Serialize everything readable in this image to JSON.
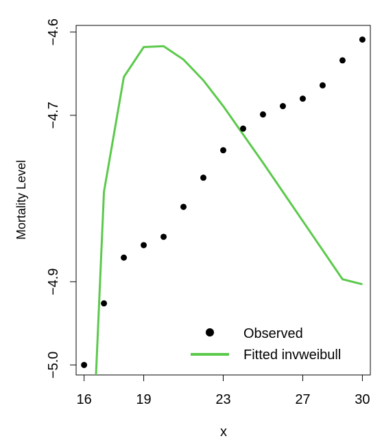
{
  "chart_data": {
    "type": "scatter+line",
    "xlabel": "x",
    "ylabel": "Mortality Level",
    "xlim": [
      15.6,
      30.4
    ],
    "ylim": [
      -5.012,
      -4.592
    ],
    "x_ticks": [
      16,
      19,
      23,
      27,
      30
    ],
    "y_ticks": [
      -5.0,
      -4.9,
      -4.7,
      -4.6
    ],
    "x_tick_labels": [
      "16",
      "19",
      "23",
      "27",
      "30"
    ],
    "y_tick_labels": [
      "−5.0",
      "−4.9",
      "−4.7",
      "−4.6"
    ],
    "grid": false,
    "legend_position": "bottom-right",
    "series": [
      {
        "name": "Observed",
        "kind": "points",
        "color": "#000000",
        "x": [
          16,
          17,
          18,
          19,
          20,
          21,
          22,
          23,
          24,
          25,
          26,
          27,
          28,
          29,
          30
        ],
        "y": [
          -5.0,
          -4.926,
          -4.871,
          -4.856,
          -4.846,
          -4.81,
          -4.775,
          -4.742,
          -4.716,
          -4.699,
          -4.689,
          -4.68,
          -4.664,
          -4.634,
          -4.609
        ]
      },
      {
        "name": "Fitted invweibull",
        "kind": "line",
        "color": "#5bc94b",
        "x": [
          16.6,
          17,
          18,
          19,
          20,
          21,
          22,
          23,
          24,
          25,
          26,
          27,
          28,
          29,
          30
        ],
        "y": [
          -5.012,
          -4.792,
          -4.654,
          -4.618,
          -4.617,
          -4.633,
          -4.658,
          -4.689,
          -4.723,
          -4.757,
          -4.792,
          -4.827,
          -4.862,
          -4.897,
          -4.903
        ]
      }
    ]
  }
}
